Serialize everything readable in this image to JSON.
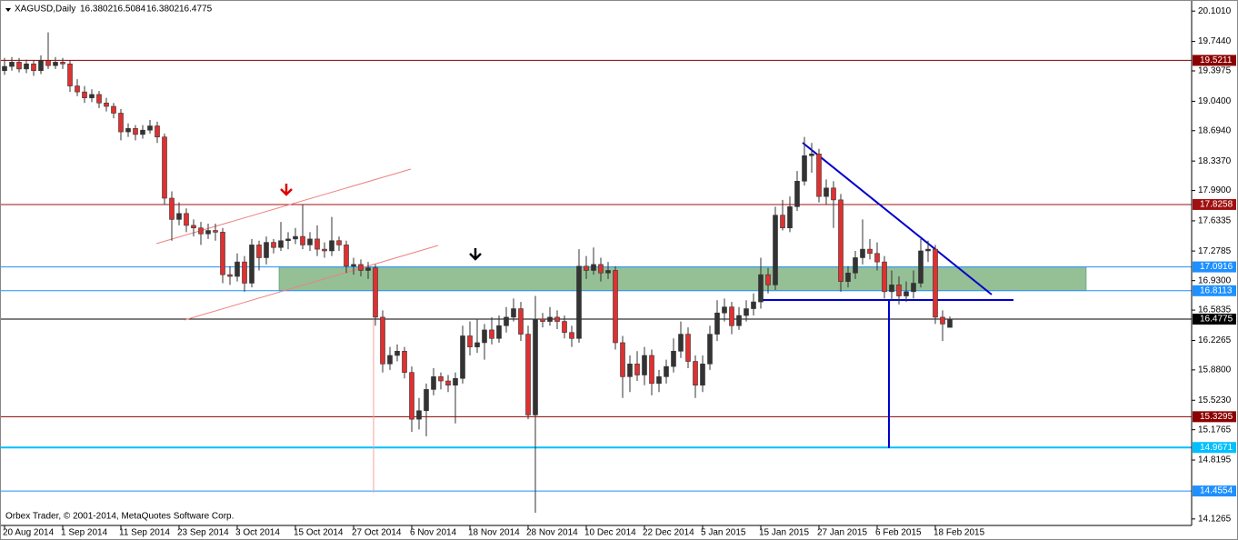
{
  "chart_data": {
    "type": "candlestick",
    "title": "XAGUSD,Daily",
    "footer": "Orbex Trader, © 2001-2014, MetaQuotes Software Corp.",
    "up_color": "#333333",
    "down_color": "#e03030",
    "ylim": [
      14.05,
      20.21
    ],
    "yticks": [
      {
        "value": 20.101,
        "label": "20.1010"
      },
      {
        "value": 19.744,
        "label": "19.7440"
      },
      19.3975,
      {
        "value": 19.04,
        "label": "19.0400"
      },
      {
        "value": 18.694,
        "label": "18.6940"
      },
      {
        "value": 18.337,
        "label": "18.3370"
      },
      {
        "value": 17.99,
        "label": "17.9900"
      },
      17.6335,
      17.2785,
      {
        "value": 16.93,
        "label": "16.9300"
      },
      16.5835,
      16.2265,
      {
        "value": 15.88,
        "label": "15.8800"
      },
      {
        "value": 15.523,
        "label": "15.5230"
      },
      15.1765,
      14.8195,
      14.1265
    ],
    "levels": [
      {
        "value": 19.5211,
        "color": "#8b0000"
      },
      {
        "value": 17.8258,
        "color": "#a01010"
      },
      {
        "value": 17.0916,
        "color": "#1e90ff"
      },
      {
        "value": 16.8113,
        "color": "#1e90ff"
      },
      {
        "value": 16.4775,
        "color": "#000000"
      },
      {
        "value": 15.3295,
        "color": "#8b0000"
      },
      {
        "value": 14.9671,
        "color": "#00bfff"
      },
      {
        "value": 14.4554,
        "color": "#1e90ff"
      }
    ],
    "categories": [
      "20 Aug 2014",
      null,
      null,
      null,
      null,
      null,
      null,
      null,
      "1 Sep 2014",
      null,
      null,
      null,
      null,
      null,
      null,
      null,
      "11 Sep 2014",
      null,
      null,
      null,
      null,
      null,
      null,
      null,
      "23 Sep 2014",
      null,
      null,
      null,
      null,
      null,
      null,
      null,
      "3 Oct 2014",
      null,
      null,
      null,
      null,
      null,
      null,
      null,
      "15 Oct 2014",
      null,
      null,
      null,
      null,
      null,
      null,
      null,
      "27 Oct 2014",
      null,
      null,
      null,
      null,
      null,
      null,
      null,
      "6 Nov 2014",
      null,
      null,
      null,
      null,
      null,
      null,
      null,
      "18 Nov 2014",
      null,
      null,
      null,
      null,
      null,
      null,
      null,
      "28 Nov 2014",
      null,
      null,
      null,
      null,
      null,
      null,
      null,
      "10 Dec 2014",
      null,
      null,
      null,
      null,
      null,
      null,
      null,
      "22 Dec 2014",
      null,
      null,
      null,
      null,
      null,
      null,
      null,
      "5 Jan 2015",
      null,
      null,
      null,
      null,
      null,
      null,
      null,
      "15 Jan 2015",
      null,
      null,
      null,
      null,
      null,
      null,
      null,
      "27 Jan 2015",
      null,
      null,
      null,
      null,
      null,
      null,
      null,
      "6 Feb 2015",
      null,
      null,
      null,
      null,
      null,
      null,
      null,
      "18 Feb 2015",
      null,
      null
    ],
    "candles": [
      [
        19.4,
        19.55,
        19.35,
        19.45
      ],
      [
        19.45,
        19.56,
        19.4,
        19.5
      ],
      [
        19.5,
        19.55,
        19.38,
        19.42
      ],
      [
        19.42,
        19.53,
        19.37,
        19.48
      ],
      [
        19.48,
        19.52,
        19.34,
        19.4
      ],
      [
        19.4,
        19.58,
        19.36,
        19.52
      ],
      [
        19.52,
        19.85,
        19.42,
        19.46
      ],
      [
        19.46,
        19.56,
        19.42,
        19.5
      ],
      [
        19.5,
        19.55,
        19.42,
        19.48
      ],
      [
        19.48,
        19.52,
        19.15,
        19.22
      ],
      [
        19.22,
        19.3,
        19.1,
        19.15
      ],
      [
        19.15,
        19.22,
        19.02,
        19.08
      ],
      [
        19.08,
        19.18,
        19.03,
        19.12
      ],
      [
        19.12,
        19.16,
        18.96,
        19.02
      ],
      [
        19.02,
        19.08,
        18.92,
        18.98
      ],
      [
        18.98,
        19.02,
        18.84,
        18.9
      ],
      [
        18.9,
        18.95,
        18.58,
        18.68
      ],
      [
        18.68,
        18.78,
        18.62,
        18.72
      ],
      [
        18.72,
        18.76,
        18.58,
        18.65
      ],
      [
        18.65,
        18.76,
        18.6,
        18.7
      ],
      [
        18.7,
        18.82,
        18.66,
        18.75
      ],
      [
        18.75,
        18.8,
        18.55,
        18.62
      ],
      [
        18.62,
        18.66,
        17.82,
        17.9
      ],
      [
        17.9,
        17.98,
        17.4,
        17.65
      ],
      [
        17.65,
        17.85,
        17.58,
        17.72
      ],
      [
        17.72,
        17.78,
        17.5,
        17.58
      ],
      [
        17.58,
        17.65,
        17.45,
        17.55
      ],
      [
        17.55,
        17.62,
        17.35,
        17.48
      ],
      [
        17.48,
        17.6,
        17.42,
        17.52
      ],
      [
        17.52,
        17.6,
        17.4,
        17.5
      ],
      [
        17.5,
        17.55,
        16.9,
        17.0
      ],
      [
        17.0,
        17.1,
        16.88,
        16.98
      ],
      [
        16.98,
        17.25,
        16.92,
        17.15
      ],
      [
        17.15,
        17.22,
        16.8,
        16.9
      ],
      [
        16.9,
        17.42,
        16.85,
        17.35
      ],
      [
        17.35,
        17.4,
        17.05,
        17.2
      ],
      [
        17.2,
        17.45,
        17.12,
        17.38
      ],
      [
        17.38,
        17.42,
        17.25,
        17.32
      ],
      [
        17.32,
        17.62,
        17.28,
        17.4
      ],
      [
        17.4,
        17.5,
        17.3,
        17.42
      ],
      [
        17.42,
        17.55,
        17.36,
        17.45
      ],
      [
        17.45,
        17.82,
        17.3,
        17.35
      ],
      [
        17.35,
        17.5,
        17.28,
        17.42
      ],
      [
        17.42,
        17.58,
        17.22,
        17.3
      ],
      [
        17.3,
        17.38,
        17.2,
        17.28
      ],
      [
        17.28,
        17.68,
        17.22,
        17.4
      ],
      [
        17.4,
        17.45,
        17.28,
        17.35
      ],
      [
        17.35,
        17.4,
        17.02,
        17.1
      ],
      [
        17.1,
        17.2,
        17.0,
        17.12
      ],
      [
        17.12,
        17.18,
        16.98,
        17.05
      ],
      [
        17.05,
        17.15,
        16.95,
        17.08
      ],
      [
        17.08,
        17.12,
        16.4,
        16.5
      ],
      [
        16.5,
        16.58,
        15.85,
        15.95
      ],
      [
        15.95,
        16.15,
        15.88,
        16.05
      ],
      [
        16.05,
        16.18,
        15.98,
        16.1
      ],
      [
        16.1,
        16.15,
        15.78,
        15.85
      ],
      [
        15.85,
        15.92,
        15.15,
        15.3
      ],
      [
        15.3,
        15.55,
        15.18,
        15.4
      ],
      [
        15.4,
        15.72,
        15.1,
        15.65
      ],
      [
        15.65,
        15.9,
        15.58,
        15.8
      ],
      [
        15.8,
        15.85,
        15.65,
        15.75
      ],
      [
        15.75,
        15.82,
        15.62,
        15.7
      ],
      [
        15.7,
        15.85,
        15.25,
        15.78
      ],
      [
        15.78,
        16.4,
        15.72,
        16.28
      ],
      [
        16.28,
        16.45,
        16.05,
        16.15
      ],
      [
        16.15,
        16.48,
        16.08,
        16.2
      ],
      [
        16.2,
        16.42,
        16.0,
        16.35
      ],
      [
        16.35,
        16.5,
        16.18,
        16.25
      ],
      [
        16.25,
        16.52,
        16.2,
        16.4
      ],
      [
        16.4,
        16.62,
        16.32,
        16.5
      ],
      [
        16.5,
        16.72,
        16.45,
        16.6
      ],
      [
        16.6,
        16.68,
        16.22,
        16.3
      ],
      [
        16.3,
        16.4,
        15.3,
        15.35
      ],
      [
        15.35,
        16.75,
        14.2,
        16.48
      ],
      [
        16.48,
        16.55,
        16.38,
        16.45
      ],
      [
        16.45,
        16.62,
        16.4,
        16.5
      ],
      [
        16.5,
        16.58,
        16.36,
        16.45
      ],
      [
        16.45,
        16.52,
        16.25,
        16.32
      ],
      [
        16.32,
        16.4,
        16.15,
        16.25
      ],
      [
        16.25,
        17.3,
        16.2,
        17.1
      ],
      [
        17.1,
        17.22,
        16.95,
        17.05
      ],
      [
        17.05,
        17.32,
        17.0,
        17.12
      ],
      [
        17.12,
        17.2,
        16.92,
        17.02
      ],
      [
        17.02,
        17.15,
        16.95,
        17.05
      ],
      [
        17.05,
        17.1,
        16.12,
        16.2
      ],
      [
        16.2,
        16.28,
        15.55,
        15.8
      ],
      [
        15.8,
        16.05,
        15.62,
        15.95
      ],
      [
        15.95,
        16.1,
        15.75,
        15.82
      ],
      [
        15.82,
        16.15,
        15.7,
        16.05
      ],
      [
        16.05,
        16.12,
        15.58,
        15.72
      ],
      [
        15.72,
        15.88,
        15.62,
        15.8
      ],
      [
        15.8,
        16.0,
        15.72,
        15.92
      ],
      [
        15.92,
        16.25,
        15.85,
        16.1
      ],
      [
        16.1,
        16.45,
        16.02,
        16.3
      ],
      [
        16.3,
        16.38,
        15.9,
        15.98
      ],
      [
        15.98,
        16.05,
        15.55,
        15.7
      ],
      [
        15.7,
        16.05,
        15.62,
        15.95
      ],
      [
        15.95,
        16.4,
        15.88,
        16.3
      ],
      [
        16.3,
        16.7,
        16.22,
        16.55
      ],
      [
        16.55,
        16.72,
        16.45,
        16.62
      ],
      [
        16.62,
        16.68,
        16.3,
        16.4
      ],
      [
        16.4,
        16.62,
        16.35,
        16.52
      ],
      [
        16.52,
        16.7,
        16.45,
        16.6
      ],
      [
        16.6,
        16.78,
        16.52,
        16.68
      ],
      [
        16.68,
        17.2,
        16.6,
        17.0
      ],
      [
        17.0,
        17.08,
        16.78,
        16.88
      ],
      [
        16.88,
        17.8,
        16.82,
        17.7
      ],
      [
        17.7,
        17.88,
        17.52,
        17.55
      ],
      [
        17.55,
        17.92,
        17.5,
        17.8
      ],
      [
        17.8,
        18.22,
        17.75,
        18.1
      ],
      [
        18.1,
        18.62,
        18.05,
        18.4
      ],
      [
        18.4,
        18.55,
        18.2,
        18.42
      ],
      [
        18.42,
        18.48,
        17.85,
        17.92
      ],
      [
        17.92,
        18.12,
        17.82,
        18.02
      ],
      [
        18.02,
        18.1,
        17.55,
        17.88
      ],
      [
        17.88,
        17.95,
        16.8,
        16.92
      ],
      [
        16.92,
        17.1,
        16.85,
        17.02
      ],
      [
        17.02,
        17.28,
        16.95,
        17.2
      ],
      [
        17.2,
        17.65,
        17.12,
        17.3
      ],
      [
        17.3,
        17.42,
        17.18,
        17.25
      ],
      [
        17.25,
        17.38,
        17.05,
        17.15
      ],
      [
        17.15,
        17.22,
        16.72,
        16.8
      ],
      [
        16.8,
        17.05,
        16.7,
        16.88
      ],
      [
        16.88,
        16.98,
        16.65,
        16.75
      ],
      [
        16.75,
        16.92,
        16.68,
        16.8
      ],
      [
        16.8,
        17.05,
        16.72,
        16.9
      ],
      [
        16.9,
        17.42,
        16.85,
        17.28
      ],
      [
        17.28,
        17.4,
        17.15,
        17.3
      ],
      [
        17.3,
        17.35,
        16.42,
        16.5
      ],
      [
        16.5,
        16.58,
        16.22,
        16.42
      ],
      [
        16.3802,
        16.5084,
        16.3802,
        16.4775
      ]
    ]
  }
}
